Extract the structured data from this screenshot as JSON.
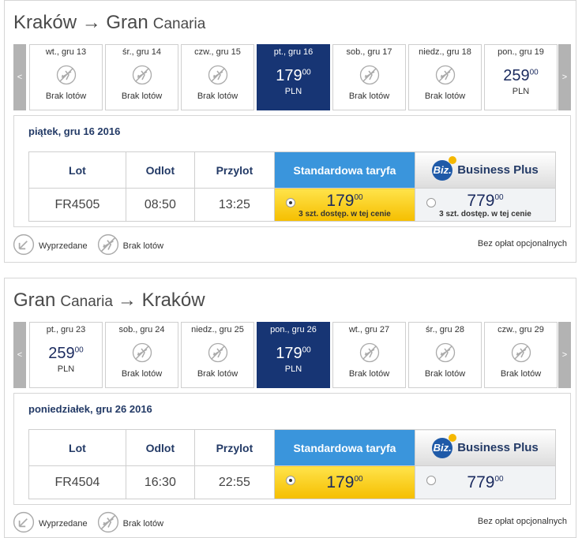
{
  "nav_prev": "<",
  "nav_next": ">",
  "legend": {
    "sold_out": "Wyprzedane",
    "no_flights": "Brak lotów",
    "optional_fees": "Bez opłat opcjonalnych"
  },
  "table_headers": {
    "flight": "Lot",
    "departure": "Odlot",
    "arrival": "Przylot",
    "standard": "Standardowa taryfa",
    "business_badge": "Biz.",
    "business": "Business Plus"
  },
  "sections": [
    {
      "title_parts": [
        {
          "text": "Kraków → Gran",
          "small": false
        },
        {
          "text": "Canaria",
          "small": true
        }
      ],
      "days": [
        {
          "label": "wt., gru 13",
          "status": "Brak lotów"
        },
        {
          "label": "śr., gru 14",
          "status": "Brak lotów"
        },
        {
          "label": "czw., gru 15",
          "status": "Brak lotów"
        },
        {
          "label": "pt., gru 16",
          "price": 179,
          "cents": "00",
          "currency": "PLN",
          "selected": true
        },
        {
          "label": "sob., gru 17",
          "status": "Brak lotów"
        },
        {
          "label": "niedz., gru 18",
          "status": "Brak lotów"
        },
        {
          "label": "pon., gru 19",
          "price": 259,
          "cents": "00",
          "currency": "PLN"
        }
      ],
      "date_heading": "piątek, gru 16 2016",
      "flight": {
        "number": "FR4505",
        "departure": "08:50",
        "arrival": "13:25",
        "standard": {
          "price": 179,
          "cents": "00",
          "note": "3 szt. dostęp. w tej cenie",
          "selected": true
        },
        "business": {
          "price": 779,
          "cents": "00",
          "note": "3 szt. dostęp. w tej cenie",
          "selected": false
        }
      }
    },
    {
      "title_parts": [
        {
          "text": "Gran",
          "small": false
        },
        {
          "text": "Canaria",
          "small": true
        },
        {
          "text": "→ Kraków",
          "small": false
        }
      ],
      "days": [
        {
          "label": "pt., gru 23",
          "price": 259,
          "cents": "00",
          "currency": "PLN"
        },
        {
          "label": "sob., gru 24",
          "status": "Brak lotów"
        },
        {
          "label": "niedz., gru 25",
          "status": "Brak lotów"
        },
        {
          "label": "pon., gru 26",
          "price": 179,
          "cents": "00",
          "currency": "PLN",
          "selected": true
        },
        {
          "label": "wt., gru 27",
          "status": "Brak lotów"
        },
        {
          "label": "śr., gru 28",
          "status": "Brak lotów"
        },
        {
          "label": "czw., gru 29",
          "status": "Brak lotów"
        }
      ],
      "date_heading": "poniedziałek, gru 26 2016",
      "flight": {
        "number": "FR4504",
        "departure": "16:30",
        "arrival": "22:55",
        "standard": {
          "price": 179,
          "cents": "00",
          "selected": true
        },
        "business": {
          "price": 779,
          "cents": "00",
          "selected": false
        }
      }
    }
  ]
}
